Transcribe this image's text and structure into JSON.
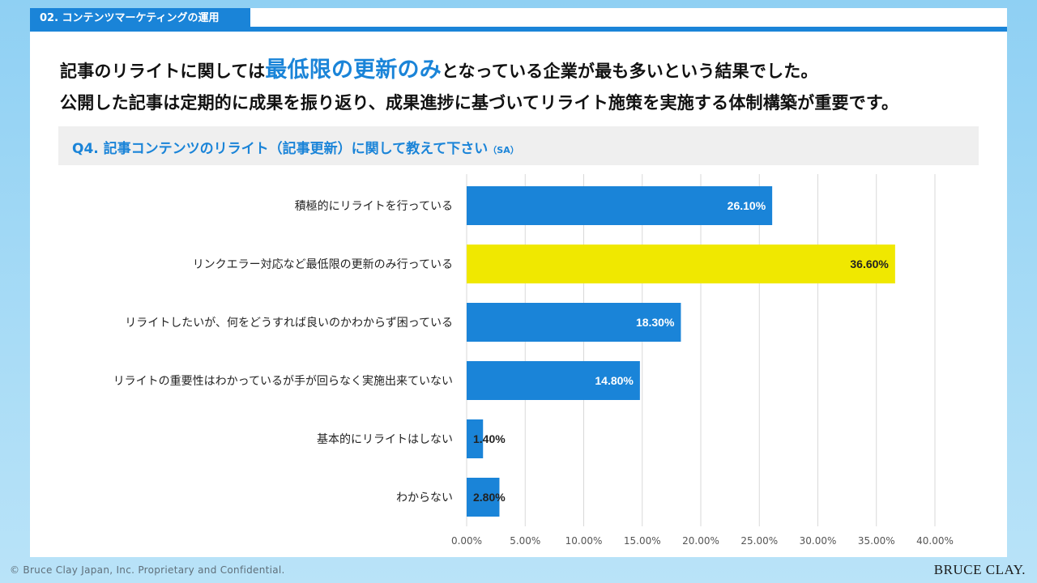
{
  "section_tab": "02. コンテンツマーケティングの運用",
  "headline": {
    "line1_pre": "記事のリライトに関しては",
    "line1_highlight": "最低限の更新のみ",
    "line1_post": "となっている企業が最も多いという結果でした。",
    "line2": "公開した記事は定期的に成果を振り返り、成果進捗に基づいてリライト施策を実施する体制構築が重要です。"
  },
  "question": {
    "text": "Q4. 記事コンテンツのリライト（記事更新）に関して教えて下さい",
    "tag": "（SA）"
  },
  "colors": {
    "accent": "#1a84d8",
    "bar": "#1a84d8",
    "highlight_bar": "#f0e800"
  },
  "chart_data": {
    "type": "bar",
    "orientation": "horizontal",
    "categories": [
      "積極的にリライトを行っている",
      "リンクエラー対応など最低限の更新のみ行っている",
      "リライトしたいが、何をどうすれば良いのかわからず困っている",
      "リライトの重要性はわかっているが手が回らなく実施出来ていない",
      "基本的にリライトはしない",
      "わからない"
    ],
    "values": [
      26.1,
      36.6,
      18.3,
      14.8,
      1.4,
      2.8
    ],
    "value_labels": [
      "26.10%",
      "36.60%",
      "18.30%",
      "14.80%",
      "1.40%",
      "2.80%"
    ],
    "highlight_index": 1,
    "xlim": [
      0,
      40
    ],
    "xticks": [
      0,
      5,
      10,
      15,
      20,
      25,
      30,
      35,
      40
    ],
    "xtick_labels": [
      "0.00%",
      "5.00%",
      "10.00%",
      "15.00%",
      "20.00%",
      "25.00%",
      "30.00%",
      "35.00%",
      "40.00%"
    ],
    "grid": true,
    "legend": "none",
    "title": "",
    "xlabel": "",
    "ylabel": ""
  },
  "footer": "© Bruce Clay Japan, Inc. Proprietary and Confidential.",
  "brand": "BRUCE CLAY."
}
